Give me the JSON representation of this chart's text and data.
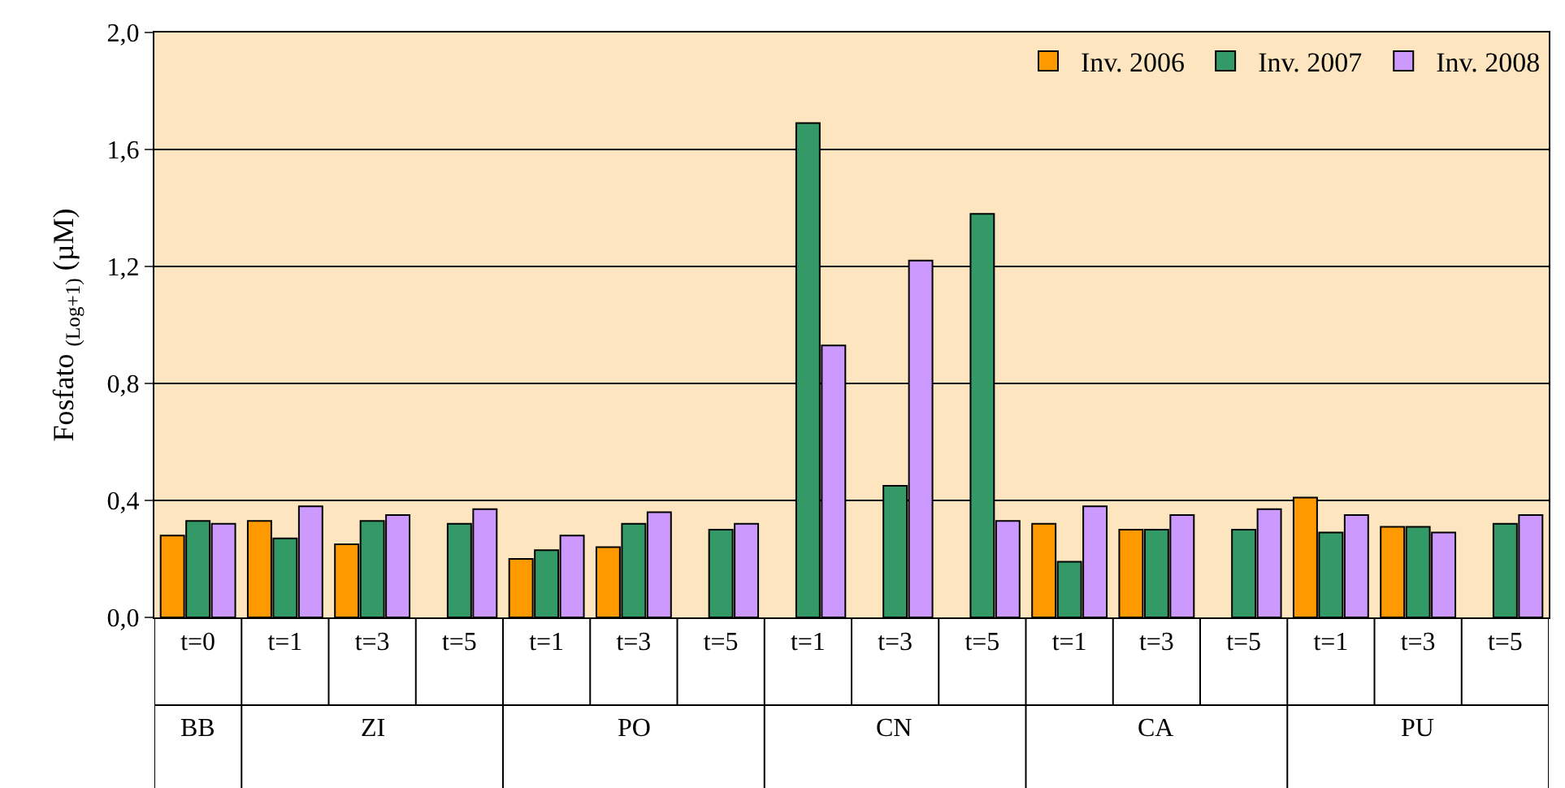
{
  "chart_data": {
    "type": "bar",
    "ylabel": "Fosfato $_{(Log+1)}$ (µM)",
    "categories": [
      "t=0",
      "t=1",
      "t=3",
      "t=5",
      "t=1",
      "t=3",
      "t=5",
      "t=1",
      "t=3",
      "t=5",
      "t=1",
      "t=3",
      "t=5",
      "t=1",
      "t=3",
      "t=5"
    ],
    "annotations": [
      "BB",
      "ZI",
      "PO",
      "CN",
      "CA",
      "PU"
    ],
    "series": [
      {
        "name": "Inv. 2006",
        "color": "#ff9900",
        "values": [
          0.28,
          0.33,
          0.25,
          null,
          0.2,
          0.24,
          null,
          null,
          null,
          null,
          0.32,
          0.3,
          null,
          0.41,
          0.31,
          null
        ]
      },
      {
        "name": "Inv. 2007",
        "color": "#339966",
        "values": [
          0.33,
          0.27,
          0.33,
          0.32,
          0.23,
          0.32,
          0.3,
          1.69,
          0.45,
          1.38,
          0.19,
          0.3,
          0.3,
          0.29,
          0.31,
          0.32
        ]
      },
      {
        "name": "Inv. 2008",
        "color": "#cc99ff",
        "values": [
          0.32,
          0.38,
          0.35,
          0.37,
          0.28,
          0.36,
          0.32,
          0.93,
          1.22,
          0.33,
          0.38,
          0.35,
          0.37,
          0.35,
          0.29,
          0.35
        ]
      }
    ],
    "ylim": [
      0,
      2.0
    ],
    "yticks": [
      {
        "value": 0,
        "label": "0,0"
      },
      {
        "value": 0.4,
        "label": "0,4"
      },
      {
        "value": 0.8,
        "label": "0,8"
      },
      {
        "value": 1.2,
        "label": "1,2"
      },
      {
        "value": 1.6,
        "label": "1,6"
      },
      {
        "value": 2.0,
        "label": "2,0"
      }
    ],
    "grid": "y",
    "legend": "top right"
  }
}
